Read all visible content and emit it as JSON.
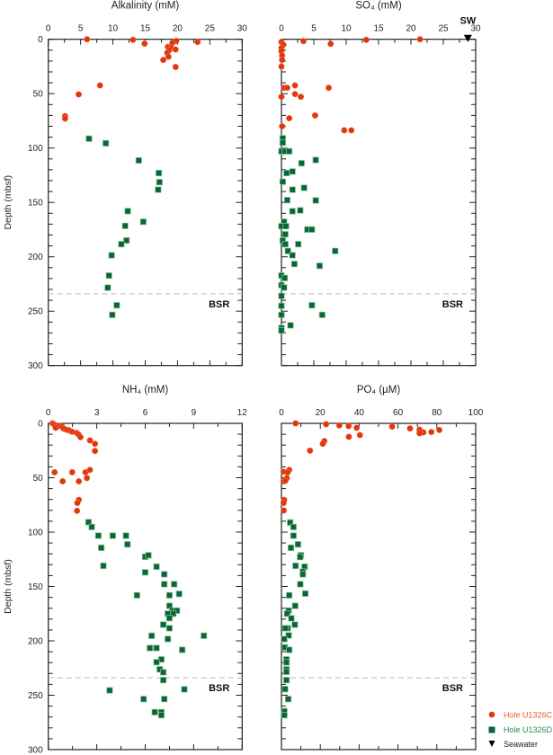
{
  "colors": {
    "hole_c": "#e0380c",
    "hole_d": "#0a6636",
    "hole_d_edge": "#8fc79a",
    "seawater": "#000000",
    "bsr_line": "#bbbbbb",
    "axis": "#222222"
  },
  "legend": {
    "placement": "bottom-right",
    "items": [
      {
        "label": "Hole U1326C",
        "marker": "circle",
        "color": "#e0380c"
      },
      {
        "label": "Hole U1326D",
        "marker": "square",
        "color": "#0a6636"
      },
      {
        "label": "Seawater",
        "marker": "triangle-down",
        "color": "#000000"
      }
    ]
  },
  "chart_data": [
    {
      "type": "scatter",
      "title": "Alkalinity (mM)",
      "ylabel": "Depth (mbsf)",
      "xlim": [
        0,
        30
      ],
      "xticks": [
        0,
        5,
        10,
        15,
        20,
        25,
        30
      ],
      "ylim": [
        0,
        300
      ],
      "yticks": [
        0,
        50,
        100,
        150,
        200,
        250,
        300
      ],
      "y_inverted": true,
      "bsr": {
        "depth": 234,
        "label": "BSR"
      },
      "series": [
        {
          "name": "Hole U1326C",
          "points": [
            [
              6.0,
              0
            ],
            [
              13.1,
              0.5
            ],
            [
              14.9,
              4
            ],
            [
              19.8,
              1.5
            ],
            [
              23.1,
              2.5
            ],
            [
              19.2,
              3.3
            ],
            [
              18.5,
              7
            ],
            [
              19.0,
              8
            ],
            [
              19.7,
              9.4
            ],
            [
              18.7,
              10
            ],
            [
              18.4,
              12.5
            ],
            [
              18.6,
              16
            ],
            [
              17.8,
              19
            ],
            [
              19.7,
              25.5
            ],
            [
              8.0,
              42.4
            ],
            [
              4.7,
              50.7
            ],
            [
              2.6,
              70.6
            ],
            [
              2.6,
              72.9
            ]
          ]
        },
        {
          "name": "Hole U1326D",
          "points": [
            [
              6.3,
              91.4
            ],
            [
              8.9,
              95.6
            ],
            [
              14.0,
              111.4
            ],
            [
              17.1,
              123
            ],
            [
              17.2,
              131.4
            ],
            [
              17.0,
              138.3
            ],
            [
              12.3,
              158
            ],
            [
              14.7,
              167.8
            ],
            [
              11.9,
              171.6
            ],
            [
              12.1,
              185
            ],
            [
              11.3,
              188.4
            ],
            [
              9.8,
              198.6
            ],
            [
              9.4,
              217.3
            ],
            [
              9.2,
              228.4
            ],
            [
              10.6,
              244.6
            ],
            [
              9.9,
              253.4
            ]
          ]
        }
      ]
    },
    {
      "type": "scatter",
      "title": "SO₄ (mM)",
      "xlim": [
        0,
        30
      ],
      "xticks": [
        0,
        5,
        10,
        15,
        20,
        25,
        30
      ],
      "ylim": [
        0,
        300
      ],
      "y_inverted": true,
      "bsr": {
        "depth": 234,
        "label": "BSR"
      },
      "seawater": {
        "value": 28.8,
        "depth": 0,
        "label": "SW"
      },
      "series": [
        {
          "name": "Hole U1326C",
          "points": [
            [
              3.4,
              1.7
            ],
            [
              7.6,
              4.2
            ],
            [
              13.1,
              0.5
            ],
            [
              21.4,
              0
            ],
            [
              0,
              2.5
            ],
            [
              0.3,
              5
            ],
            [
              0,
              8
            ],
            [
              0,
              11
            ],
            [
              0.1,
              15
            ],
            [
              0.1,
              19
            ],
            [
              0,
              25
            ],
            [
              2.1,
              42.4
            ],
            [
              0.4,
              44.6
            ],
            [
              0.9,
              44.6
            ],
            [
              7.3,
              44.6
            ],
            [
              2.1,
              50.4
            ],
            [
              0,
              52.9
            ],
            [
              3.0,
              52.9
            ],
            [
              5.2,
              70
            ],
            [
              1.2,
              72.6
            ],
            [
              0.1,
              80
            ],
            [
              9.7,
              83.7
            ],
            [
              10.8,
              83.7
            ]
          ]
        },
        {
          "name": "Hole U1326D",
          "points": [
            [
              0.2,
              91
            ],
            [
              0.2,
              95
            ],
            [
              0,
              103
            ],
            [
              0.5,
              103
            ],
            [
              1.2,
              103
            ],
            [
              3.1,
              114
            ],
            [
              5.3,
              111
            ],
            [
              0.8,
              123
            ],
            [
              1.7,
              121.6
            ],
            [
              0.2,
              131
            ],
            [
              1.7,
              138.3
            ],
            [
              3.5,
              136.6
            ],
            [
              0.9,
              147.9
            ],
            [
              5.3,
              148.2
            ],
            [
              1.7,
              158.1
            ],
            [
              2.9,
              157.3
            ],
            [
              0.4,
              167.8
            ],
            [
              0,
              171.9
            ],
            [
              0.7,
              171.9
            ],
            [
              4.0,
              174.9
            ],
            [
              4.7,
              174.9
            ],
            [
              0.6,
              179.3
            ],
            [
              0.2,
              185.1
            ],
            [
              0.6,
              188.4
            ],
            [
              2.6,
              188.4
            ],
            [
              1.0,
              194.7
            ],
            [
              8.3,
              194.7
            ],
            [
              1.7,
              198.6
            ],
            [
              2.0,
              206.6
            ],
            [
              5.9,
              208.3
            ],
            [
              0,
              217.3
            ],
            [
              0.5,
              219.5
            ],
            [
              0,
              226.1
            ],
            [
              0.4,
              228.3
            ],
            [
              0,
              236
            ],
            [
              0,
              245.1
            ],
            [
              4.7,
              244.6
            ],
            [
              0,
              253.4
            ],
            [
              6.3,
              253.4
            ],
            [
              1.4,
              263
            ],
            [
              0,
              265.5
            ],
            [
              0,
              267.8
            ]
          ]
        }
      ]
    },
    {
      "type": "scatter",
      "title": "NH₄ (mM)",
      "ylabel": "Depth (mbsf)",
      "xlim": [
        0,
        12
      ],
      "xticks": [
        0,
        3,
        6,
        9,
        12
      ],
      "ylim": [
        0,
        300
      ],
      "yticks": [
        0,
        50,
        100,
        150,
        200,
        250,
        300
      ],
      "y_inverted": true,
      "bsr": {
        "depth": 234,
        "label": "BSR"
      },
      "series": [
        {
          "name": "Hole U1326C",
          "points": [
            [
              0.26,
              0
            ],
            [
              0.37,
              1.1
            ],
            [
              0.54,
              2.2
            ],
            [
              0.46,
              4.1
            ],
            [
              0.72,
              2.5
            ],
            [
              0.87,
              3.3
            ],
            [
              0.96,
              5
            ],
            [
              1.13,
              5.8
            ],
            [
              1.28,
              6.4
            ],
            [
              1.47,
              7.7
            ],
            [
              1.76,
              8.8
            ],
            [
              1.87,
              10.2
            ],
            [
              1.99,
              12.7
            ],
            [
              2.58,
              15.7
            ],
            [
              2.89,
              18.8
            ],
            [
              2.89,
              25.4
            ],
            [
              0.39,
              45
            ],
            [
              1.48,
              45
            ],
            [
              2.3,
              45
            ],
            [
              2.58,
              42.8
            ],
            [
              2.39,
              50.3
            ],
            [
              0.89,
              53.3
            ],
            [
              1.89,
              53.3
            ],
            [
              1.89,
              70.4
            ],
            [
              1.8,
              73.2
            ],
            [
              1.78,
              80.4
            ]
          ]
        },
        {
          "name": "Hole U1326D",
          "points": [
            [
              2.49,
              90.9
            ],
            [
              2.69,
              95.3
            ],
            [
              3.1,
              103.3
            ],
            [
              3.99,
              103.3
            ],
            [
              4.81,
              103.3
            ],
            [
              4.9,
              111.3
            ],
            [
              3.28,
              114.4
            ],
            [
              6.0,
              122.7
            ],
            [
              6.2,
              121.3
            ],
            [
              3.41,
              131
            ],
            [
              6.7,
              131.8
            ],
            [
              6.0,
              137
            ],
            [
              7.18,
              138.8
            ],
            [
              7.18,
              147.9
            ],
            [
              7.79,
              147.9
            ],
            [
              5.49,
              158.1
            ],
            [
              7.5,
              158.1
            ],
            [
              8.1,
              156.8
            ],
            [
              7.5,
              167.8
            ],
            [
              7.68,
              172.2
            ],
            [
              7.96,
              172.2
            ],
            [
              7.4,
              175
            ],
            [
              7.74,
              175
            ],
            [
              7.5,
              179.1
            ],
            [
              7.12,
              185.1
            ],
            [
              7.5,
              188.4
            ],
            [
              6.4,
              195.3
            ],
            [
              9.63,
              195.3
            ],
            [
              7.4,
              198.3
            ],
            [
              6.29,
              206.6
            ],
            [
              6.7,
              206.6
            ],
            [
              8.29,
              208.3
            ],
            [
              7.0,
              217.1
            ],
            [
              6.7,
              219.6
            ],
            [
              6.9,
              226.2
            ],
            [
              7.12,
              228.9
            ],
            [
              7.12,
              236.1
            ],
            [
              3.8,
              245.5
            ],
            [
              8.42,
              244.6
            ],
            [
              5.9,
              253.5
            ],
            [
              7.18,
              253.5
            ],
            [
              6.59,
              265.6
            ],
            [
              7.0,
              265.6
            ],
            [
              7.0,
              268.3
            ]
          ]
        }
      ]
    },
    {
      "type": "scatter",
      "title": "PO₄ (µM)",
      "xlim": [
        0,
        100
      ],
      "xticks": [
        0,
        20,
        40,
        60,
        80,
        100
      ],
      "ylim": [
        0,
        300
      ],
      "y_inverted": true,
      "bsr": {
        "depth": 234,
        "label": "BSR"
      },
      "series": [
        {
          "name": "Hole U1326C",
          "points": [
            [
              7.3,
              0
            ],
            [
              23,
              0.8
            ],
            [
              29.8,
              1.9
            ],
            [
              34.6,
              2.5
            ],
            [
              38.7,
              4.1
            ],
            [
              57,
              3
            ],
            [
              66.2,
              4.7
            ],
            [
              71.1,
              5.8
            ],
            [
              73.1,
              8.3
            ],
            [
              71.1,
              9.1
            ],
            [
              77.2,
              8
            ],
            [
              81.3,
              6.1
            ],
            [
              34.7,
              12.4
            ],
            [
              40.4,
              10.8
            ],
            [
              22.1,
              16.3
            ],
            [
              21.3,
              18.8
            ],
            [
              14.7,
              25.1
            ],
            [
              1.1,
              44.5
            ],
            [
              4,
              42.8
            ],
            [
              3.2,
              45
            ],
            [
              2.8,
              50.3
            ],
            [
              1.1,
              53.3
            ],
            [
              2,
              52.8
            ],
            [
              1.4,
              70.4
            ],
            [
              1.1,
              73.2
            ],
            [
              1.2,
              80.1
            ]
          ]
        },
        {
          "name": "Hole U1326D",
          "points": [
            [
              4.5,
              91.2
            ],
            [
              6.2,
              95.3
            ],
            [
              6.2,
              103.3
            ],
            [
              8.5,
              111.3
            ],
            [
              4.9,
              114.4
            ],
            [
              10,
              121.3
            ],
            [
              9.6,
              122.9
            ],
            [
              7.3,
              131
            ],
            [
              11.9,
              131.8
            ],
            [
              11,
              136.4
            ],
            [
              11,
              138.8
            ],
            [
              9.7,
              147.9
            ],
            [
              12.3,
              156.5
            ],
            [
              4,
              158.1
            ],
            [
              7.1,
              167.8
            ],
            [
              3.7,
              172.2
            ],
            [
              2.9,
              175
            ],
            [
              5.1,
              179.3
            ],
            [
              6.9,
              185.1
            ],
            [
              3.2,
              188.4
            ],
            [
              2.0,
              188.4
            ],
            [
              3.7,
              195
            ],
            [
              1.4,
              198.3
            ],
            [
              1.7,
              206
            ],
            [
              4,
              208.3
            ],
            [
              2.6,
              217.1
            ],
            [
              2.6,
              219.8
            ],
            [
              2.6,
              226.2
            ],
            [
              2.6,
              228.4
            ],
            [
              2.6,
              236.1
            ],
            [
              1.9,
              244.4
            ],
            [
              3.5,
              253.5
            ],
            [
              1.5,
              264.7
            ],
            [
              1.5,
              268.3
            ]
          ]
        }
      ]
    }
  ]
}
